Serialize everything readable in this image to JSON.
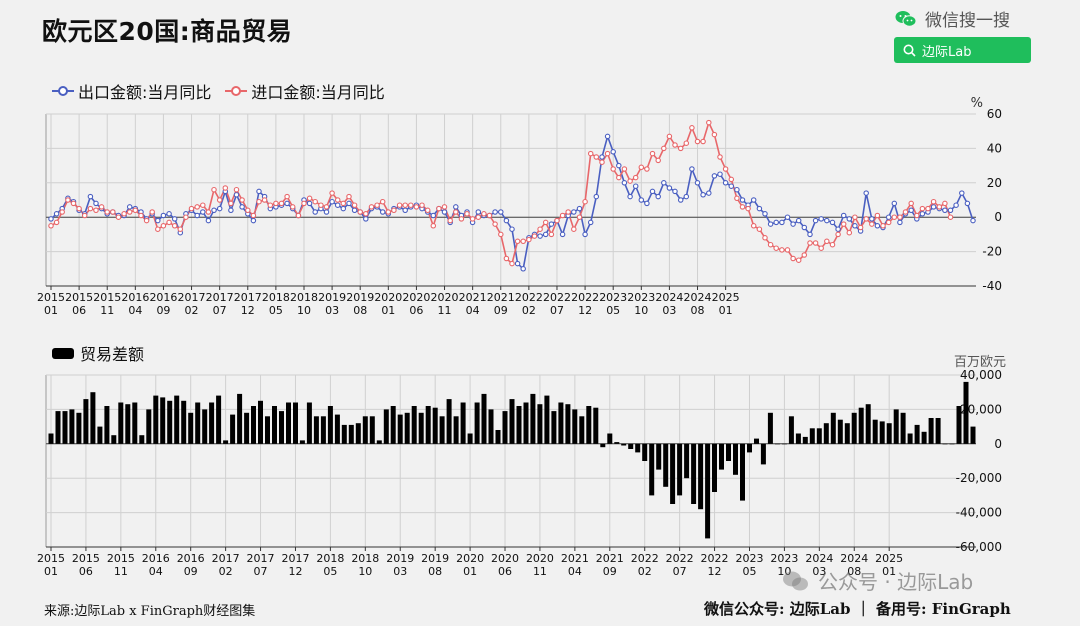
{
  "title": "欧元区20国:商品贸易",
  "wechat": {
    "label": "微信搜一搜",
    "search_text": "边际Lab",
    "icon": "wechat-icon"
  },
  "legend_top": [
    {
      "label": "出口金额:当月同比",
      "color": "#4a5fc1"
    },
    {
      "label": "进口金额:当月同比",
      "color": "#e8676a"
    }
  ],
  "legend_bottom": {
    "label": "贸易差额",
    "color": "#000000"
  },
  "footer_left": "来源:边际Lab x FinGraph财经图集",
  "footer_right": "微信公众号: 边际Lab ｜ 备用号: FinGraph",
  "watermark": "公众号 · 边际Lab",
  "chart_data": [
    {
      "type": "line",
      "ylabel": "%",
      "ylim": [
        -40,
        60
      ],
      "yticks": [
        -40,
        -20,
        0,
        20,
        40,
        60
      ],
      "x_tick_labels": [
        [
          "2015",
          "01"
        ],
        [
          "2015",
          "06"
        ],
        [
          "2015",
          "11"
        ],
        [
          "2016",
          "04"
        ],
        [
          "2016",
          "09"
        ],
        [
          "2017",
          "02"
        ],
        [
          "2017",
          "07"
        ],
        [
          "2017",
          "12"
        ],
        [
          "2018",
          "05"
        ],
        [
          "2018",
          "10"
        ],
        [
          "2019",
          "03"
        ],
        [
          "2019",
          "08"
        ],
        [
          "2020",
          "01"
        ],
        [
          "2020",
          "06"
        ],
        [
          "2020",
          "11"
        ],
        [
          "2021",
          "04"
        ],
        [
          "2021",
          "09"
        ],
        [
          "2022",
          "02"
        ],
        [
          "2022",
          "07"
        ],
        [
          "2022",
          "12"
        ],
        [
          "2023",
          "05"
        ],
        [
          "2023",
          "10"
        ],
        [
          "2024",
          "03"
        ],
        [
          "2024",
          "08"
        ],
        [
          "2025",
          "01"
        ]
      ],
      "x_start": "2015-01",
      "grid": true,
      "series": [
        {
          "name": "出口金额:当月同比",
          "color": "#4a5fc1",
          "values": [
            -1,
            2,
            5,
            11,
            9,
            4,
            2,
            12,
            8,
            5,
            2,
            3,
            1,
            1,
            6,
            5,
            3,
            -1,
            2,
            -2,
            1,
            2,
            -1,
            -9,
            2,
            4,
            1,
            3,
            -2,
            4,
            5,
            15,
            4,
            13,
            6,
            2,
            -2,
            15,
            12,
            5,
            6,
            7,
            8,
            5,
            1,
            10,
            8,
            3,
            5,
            3,
            9,
            7,
            5,
            8,
            4,
            3,
            -1,
            5,
            6,
            3,
            2,
            5,
            6,
            4,
            6,
            7,
            5,
            3,
            1,
            5,
            3,
            -3,
            6,
            1,
            3,
            -3,
            3,
            1,
            1,
            3,
            3,
            -2,
            -7,
            -27,
            -30,
            -12,
            -10,
            -11,
            -10,
            -4,
            -2,
            -10,
            1,
            3,
            5,
            -10,
            -3,
            12,
            35,
            47,
            38,
            30,
            20,
            12,
            18,
            10,
            8,
            15,
            12,
            20,
            17,
            15,
            10,
            12,
            28,
            20,
            13,
            14,
            24,
            25,
            20,
            18,
            16,
            10,
            7,
            10,
            5,
            2,
            -4,
            -3,
            -3,
            0,
            -4,
            -2,
            -6,
            -10,
            -2,
            -1,
            -2,
            -3,
            -7,
            1,
            -1,
            -5,
            -8,
            14,
            -1,
            -5,
            -6,
            0,
            8,
            -3,
            2,
            4,
            -1,
            2,
            3,
            6,
            5,
            4,
            4,
            7,
            14,
            8,
            -2
          ]
        },
        {
          "name": "进口金额:当月同比",
          "color": "#e8676a",
          "values": [
            -5,
            -3,
            3,
            10,
            8,
            5,
            1,
            5,
            4,
            6,
            3,
            3,
            0,
            2,
            3,
            4,
            1,
            -2,
            3,
            -7,
            -5,
            -3,
            -5,
            -7,
            0,
            5,
            6,
            7,
            3,
            16,
            10,
            17,
            8,
            16,
            10,
            4,
            1,
            9,
            10,
            7,
            8,
            8,
            12,
            6,
            1,
            8,
            11,
            9,
            7,
            6,
            14,
            10,
            8,
            12,
            7,
            3,
            2,
            6,
            7,
            9,
            3,
            4,
            7,
            7,
            7,
            6,
            7,
            4,
            -5,
            5,
            6,
            -2,
            3,
            -1,
            2,
            -1,
            0,
            2,
            1,
            -4,
            -10,
            -24,
            -27,
            -14,
            -14,
            -13,
            -11,
            -7,
            -3,
            -10,
            -2,
            1,
            3,
            -7,
            0,
            9,
            37,
            35,
            32,
            37,
            28,
            23,
            28,
            21,
            23,
            29,
            28,
            37,
            33,
            40,
            47,
            42,
            40,
            43,
            52,
            44,
            44,
            55,
            48,
            35,
            28,
            22,
            11,
            6,
            5,
            -5,
            -7,
            -12,
            -16,
            -18,
            -19,
            -19,
            -24,
            -25,
            -22,
            -15,
            -15,
            -18,
            -14,
            -16,
            -10,
            -4,
            -9,
            0,
            -6,
            -1,
            -4,
            1,
            -5,
            -3,
            0,
            0,
            3,
            8,
            1,
            5,
            5,
            9,
            6,
            8,
            0
          ]
        }
      ]
    },
    {
      "type": "bar",
      "ylabel": "百万欧元",
      "ylim": [
        -60000,
        40000
      ],
      "yticks": [
        -60000,
        -40000,
        -20000,
        0,
        20000,
        40000
      ],
      "x_tick_labels": [
        [
          "2015",
          "01"
        ],
        [
          "2015",
          "06"
        ],
        [
          "2015",
          "11"
        ],
        [
          "2016",
          "04"
        ],
        [
          "2016",
          "09"
        ],
        [
          "2017",
          "02"
        ],
        [
          "2017",
          "07"
        ],
        [
          "2017",
          "12"
        ],
        [
          "2018",
          "05"
        ],
        [
          "2018",
          "10"
        ],
        [
          "2019",
          "03"
        ],
        [
          "2019",
          "08"
        ],
        [
          "2020",
          "01"
        ],
        [
          "2020",
          "06"
        ],
        [
          "2020",
          "11"
        ],
        [
          "2021",
          "04"
        ],
        [
          "2021",
          "09"
        ],
        [
          "2022",
          "02"
        ],
        [
          "2022",
          "07"
        ],
        [
          "2022",
          "12"
        ],
        [
          "2023",
          "05"
        ],
        [
          "2023",
          "10"
        ],
        [
          "2024",
          "03"
        ],
        [
          "2024",
          "08"
        ],
        [
          "2025",
          "01"
        ]
      ],
      "x_start": "2015-01",
      "grid": true,
      "series": [
        {
          "name": "贸易差额",
          "color": "#000000",
          "values": [
            6000,
            19000,
            19000,
            20000,
            18000,
            26000,
            30000,
            10000,
            22000,
            5000,
            24000,
            23000,
            24000,
            5000,
            20000,
            28000,
            27000,
            25000,
            28000,
            25000,
            18000,
            24000,
            20000,
            24000,
            28000,
            2000,
            17000,
            29000,
            18000,
            22000,
            25000,
            16000,
            22000,
            19000,
            24000,
            24000,
            2000,
            24000,
            16000,
            16000,
            22000,
            17000,
            11000,
            11000,
            12000,
            16000,
            16000,
            2000,
            20000,
            22000,
            17000,
            18000,
            22000,
            18000,
            22000,
            21000,
            16000,
            26000,
            16000,
            24000,
            6000,
            24000,
            29000,
            20000,
            8000,
            19000,
            26000,
            22000,
            24000,
            29000,
            23000,
            28000,
            19000,
            24000,
            23000,
            20000,
            16000,
            22000,
            21000,
            -2000,
            6000,
            1000,
            -1000,
            -3000,
            -5000,
            -10000,
            -30000,
            -15000,
            -25000,
            -35000,
            -30000,
            -20000,
            -35000,
            -38000,
            -55000,
            -28000,
            -15000,
            -10000,
            -18000,
            -33000,
            -5000,
            3000,
            -12000,
            18000,
            0,
            0,
            16000,
            6000,
            4000,
            9000,
            9000,
            12000,
            18000,
            14000,
            12000,
            18000,
            21000,
            23000,
            14000,
            13000,
            12000,
            20000,
            18000,
            6000,
            11000,
            7000,
            15000,
            15000,
            0,
            0,
            22000,
            36000,
            10000
          ]
        }
      ]
    }
  ]
}
